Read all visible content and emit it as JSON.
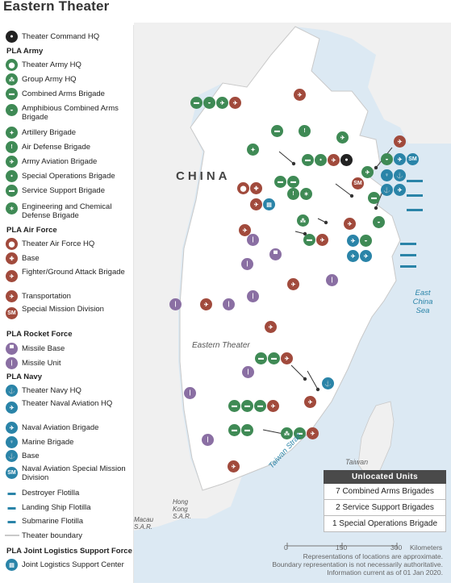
{
  "title": "Eastern Theater",
  "legend": {
    "theater_command_hq": "Theater Command HQ",
    "army": {
      "heading": "PLA Army",
      "items": [
        "Theater Army HQ",
        "Group Army HQ",
        "Combined Arms Brigade",
        "Amphibious Combined Arms Brigade",
        "Artillery Brigade",
        "Air Defense Brigade",
        "Army Aviation Brigade",
        "Special Operations Brigade",
        "Service Support Brigade",
        "Engineering and Chemical Defense Brigade"
      ]
    },
    "air_force": {
      "heading": "PLA Air Force",
      "items": [
        "Theater Air Force HQ",
        "Base",
        "Fighter/Ground Attack Brigade",
        "Transportation",
        "Special Mission Division"
      ]
    },
    "rocket_force": {
      "heading": "PLA Rocket Force",
      "items": [
        "Missile Base",
        "Missile Unit"
      ]
    },
    "navy": {
      "heading": "PLA Navy",
      "items": [
        "Theater Navy HQ",
        "Theater Naval Aviation HQ",
        "Naval Aviation Brigade",
        "Marine Brigade",
        "Base",
        "Naval Aviation Special Mission Division",
        "Destroyer Flotilla",
        "Landing Ship Flotilla",
        "Submarine Flotilla"
      ]
    },
    "boundary": "Theater boundary",
    "jlsf": {
      "heading": "PLA Joint Logistics Support Force",
      "items": [
        "Joint Logistics Support Center"
      ]
    },
    "sm_abbrev": "SM"
  },
  "map_labels": {
    "china": "CHINA",
    "eastern_theater": "Eastern Theater",
    "east_china_sea": "East China Sea",
    "taiwan": "Taiwan",
    "taiwan_strait": "Taiwan Strait",
    "hong_kong": "Hong Kong S.A.R.",
    "macau": "Macau S.A.R."
  },
  "unlocated": {
    "heading": "Unlocated Units",
    "rows": [
      "7 Combined Arms Brigades",
      "2 Service Support Brigades",
      "1 Special Operations Brigade"
    ]
  },
  "scale": {
    "ticks": [
      "0",
      "150",
      "300"
    ],
    "unit": "Kilometers"
  },
  "notes": [
    "Representations of locations are approximate.",
    "Boundary representation is not necessarily authoritative.",
    "Information current as of 01 Jan 2020."
  ],
  "colors": {
    "army": "#3f8a55",
    "air_force": "#a14a3c",
    "rocket_force": "#8a6fa3",
    "navy": "#2a84a8",
    "land": "#ffffff",
    "neighbor_land": "#f0f0f0",
    "sea": "#dce9f3",
    "water_label": "#2a84a8"
  }
}
